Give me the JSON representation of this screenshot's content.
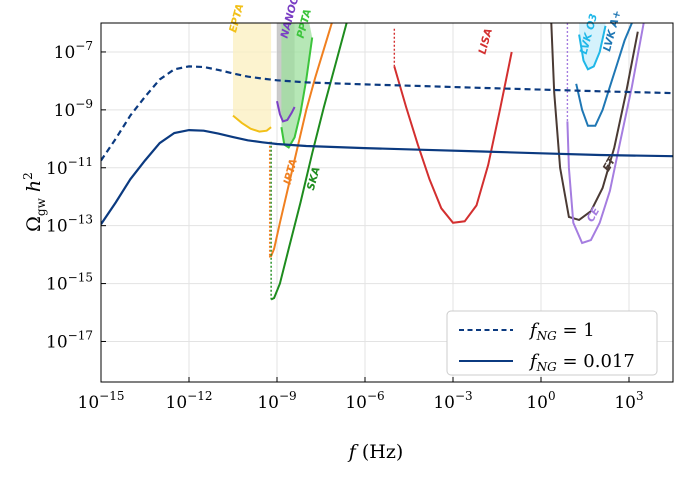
{
  "chart_data": {
    "type": "line",
    "title": "",
    "xlabel": "f (Hz)",
    "ylabel": "Ω_gw h²",
    "x_scale": "log",
    "y_scale": "log",
    "xlim_log10": [
      -15,
      4.5
    ],
    "ylim_log10": [
      -18.4,
      -6
    ],
    "grid": true,
    "x_ticks": [
      {
        "exp": -15,
        "label": "10",
        "sup": "−15"
      },
      {
        "exp": -12,
        "label": "10",
        "sup": "−12"
      },
      {
        "exp": -9,
        "label": "10",
        "sup": "−9"
      },
      {
        "exp": -6,
        "label": "10",
        "sup": "−6"
      },
      {
        "exp": -3,
        "label": "10",
        "sup": "−3"
      },
      {
        "exp": 0,
        "label": "10",
        "sup": "0"
      },
      {
        "exp": 3,
        "label": "10",
        "sup": "3"
      }
    ],
    "y_ticks": [
      {
        "exp": -7,
        "label": "10",
        "sup": "−7"
      },
      {
        "exp": -9,
        "label": "10",
        "sup": "−9"
      },
      {
        "exp": -11,
        "label": "10",
        "sup": "−11"
      },
      {
        "exp": -13,
        "label": "10",
        "sup": "−13"
      },
      {
        "exp": -15,
        "label": "10",
        "sup": "−15"
      },
      {
        "exp": -17,
        "label": "10",
        "sup": "−17"
      }
    ],
    "series": [
      {
        "name": "f_NG = 1",
        "legend_prefix": "f",
        "legend_sub": "NG",
        "legend_suffix": " = 1",
        "style": "dashed",
        "color": "#0b3a80",
        "log_x": [
          -15,
          -14.5,
          -14,
          -13.5,
          -13,
          -12.5,
          -12,
          -11.5,
          -11,
          -10.5,
          -10,
          -9.5,
          -9,
          -8,
          -6,
          -4,
          -2,
          0,
          2,
          4.5
        ],
        "log_y": [
          -10.75,
          -10.0,
          -9.2,
          -8.55,
          -7.95,
          -7.6,
          -7.5,
          -7.52,
          -7.62,
          -7.74,
          -7.85,
          -7.92,
          -7.98,
          -8.05,
          -8.12,
          -8.18,
          -8.24,
          -8.3,
          -8.36,
          -8.42
        ]
      },
      {
        "name": "f_NG = 0.017",
        "legend_prefix": "f",
        "legend_sub": "NG",
        "legend_suffix": " = 0.017",
        "style": "solid",
        "color": "#0b3a80",
        "log_x": [
          -15,
          -14.5,
          -14,
          -13.5,
          -13,
          -12.5,
          -12,
          -11.5,
          -11,
          -10.5,
          -10,
          -9.5,
          -9,
          -8,
          -6,
          -4,
          -2,
          0,
          2,
          4.5
        ],
        "log_y": [
          -12.95,
          -12.2,
          -11.4,
          -10.75,
          -10.15,
          -9.8,
          -9.7,
          -9.72,
          -9.82,
          -9.94,
          -10.05,
          -10.12,
          -10.18,
          -10.25,
          -10.32,
          -10.38,
          -10.44,
          -10.5,
          -10.56,
          -10.6
        ]
      }
    ],
    "sensitivity_curves": [
      {
        "name": "EPTA",
        "color": "#f2c018",
        "fill": "#fbefbf",
        "region_log_x": [
          -10.5,
          -9.2
        ],
        "region_top_log_y": -6,
        "log_x": [
          -10.5,
          -10.2,
          -9.9,
          -9.6,
          -9.35,
          -9.2
        ],
        "log_y": [
          -9.2,
          -9.45,
          -9.65,
          -9.75,
          -9.72,
          -9.6
        ]
      },
      {
        "name": "NANOGrav",
        "color": "#7b3fc4",
        "fill": "#b9b9b9",
        "region_log_x": [
          -9.0,
          -8.4
        ],
        "region_top_log_y": -6,
        "log_x": [
          -9.0,
          -8.9,
          -8.8,
          -8.65,
          -8.5,
          -8.4
        ],
        "log_y": [
          -8.7,
          -9.15,
          -9.4,
          -9.35,
          -9.1,
          -8.9
        ]
      },
      {
        "name": "PPTA",
        "color": "#3cc43c",
        "fill": "#9edf9e",
        "region_log_x": [
          -8.85,
          -7.9
        ],
        "region_top_log_y": -6,
        "log_x": [
          -8.85,
          -8.75,
          -8.6,
          -8.4,
          -8.2,
          -8.0,
          -7.8
        ],
        "log_y": [
          -9.6,
          -10.2,
          -10.3,
          -9.95,
          -9.1,
          -7.95,
          -6.5
        ]
      },
      {
        "name": "IPTA",
        "color": "#f08020",
        "dashed_drop_to_log_y": -14.1,
        "log_x": [
          -9.25,
          -9.2,
          -9.1,
          -8.9,
          -8.6,
          -8.3,
          -8.0,
          -7.7,
          -7.4,
          -7.1
        ],
        "log_y": [
          -14.05,
          -14.05,
          -13.8,
          -12.9,
          -11.6,
          -10.3,
          -9.0,
          -7.9,
          -6.9,
          -5.9
        ]
      },
      {
        "name": "SKA",
        "color": "#1e8c1e",
        "dashed_drop_to_log_y": -15.55,
        "log_x": [
          -9.2,
          -9.1,
          -8.9,
          -8.6,
          -8.2,
          -7.8,
          -7.4,
          -7.0,
          -6.6
        ],
        "log_y": [
          -15.55,
          -15.5,
          -15.0,
          -13.8,
          -12.2,
          -10.5,
          -8.9,
          -7.4,
          -5.9
        ]
      },
      {
        "name": "LISA",
        "color": "#d32f2f",
        "dashed_drop_to_log_y": -7.5,
        "log_x": [
          -5.0,
          -4.6,
          -4.2,
          -3.8,
          -3.4,
          -3.0,
          -2.6,
          -2.2,
          -1.8,
          -1.4,
          -1.0
        ],
        "log_y": [
          -7.5,
          -8.9,
          -10.2,
          -11.4,
          -12.4,
          -12.9,
          -12.85,
          -12.3,
          -10.9,
          -9.0,
          -7.0
        ]
      },
      {
        "name": "ET",
        "color": "#4a3a34",
        "log_x": [
          0.35,
          0.45,
          0.65,
          0.95,
          1.3,
          1.7,
          2.1,
          2.5,
          2.9,
          3.3
        ],
        "log_y": [
          -6,
          -8.4,
          -11.0,
          -12.7,
          -12.8,
          -12.5,
          -11.7,
          -10.3,
          -8.4,
          -6.3
        ]
      },
      {
        "name": "CE",
        "color": "#a57de0",
        "dashed_drop_to_log_y": -9.4,
        "log_x": [
          0.9,
          0.95,
          1.1,
          1.4,
          1.7,
          2.0,
          2.35,
          2.7,
          3.1,
          3.5
        ],
        "log_y": [
          -9.4,
          -11.0,
          -12.9,
          -13.6,
          -13.5,
          -12.9,
          -11.8,
          -10.1,
          -8.2,
          -6.0
        ]
      },
      {
        "name": "LVK O3",
        "color": "#1fb7e8",
        "fill": "#c7eefb",
        "region_log_x": [
          1.3,
          2.2
        ],
        "region_top_log_y": -6,
        "log_x": [
          1.3,
          1.45,
          1.6,
          1.8,
          2.0,
          2.2
        ],
        "log_y": [
          -6.4,
          -7.3,
          -7.6,
          -7.5,
          -7.0,
          -6.1
        ]
      },
      {
        "name": "LVK A+",
        "color": "#1f77b4",
        "log_x": [
          1.2,
          1.4,
          1.6,
          1.85,
          2.1,
          2.35,
          2.6,
          2.85,
          3.1
        ],
        "log_y": [
          -8.1,
          -9.0,
          -9.55,
          -9.55,
          -9.0,
          -8.2,
          -7.4,
          -6.6,
          -6.0
        ]
      }
    ],
    "labels": [
      {
        "text": "EPTA",
        "color": "#f2c018",
        "x": -10.4,
        "y": -6.35,
        "rot": -75
      },
      {
        "text": "NANOGrav",
        "color": "#7b3fc4",
        "x": -8.65,
        "y": -6.55,
        "rot": -75
      },
      {
        "text": "PPTA",
        "color": "#3cc43c",
        "x": -8.1,
        "y": -6.55,
        "rot": -75
      },
      {
        "text": "IPTA",
        "color": "#f08020",
        "x": -8.55,
        "y": -11.6,
        "rot": -75
      },
      {
        "text": "SKA",
        "color": "#1e8c1e",
        "x": -7.75,
        "y": -11.8,
        "rot": -75
      },
      {
        "text": "LISA",
        "color": "#d32f2f",
        "x": -1.9,
        "y": -7.1,
        "rot": -75
      },
      {
        "text": "ET",
        "color": "#4a3a34",
        "x": 2.3,
        "y": -11.15,
        "rot": -60
      },
      {
        "text": "CE",
        "color": "#a57de0",
        "x": 1.75,
        "y": -12.9,
        "rot": -60
      },
      {
        "text": "LVK O3",
        "color": "#1fb7e8",
        "x": 1.55,
        "y": -7.1,
        "rot": -75
      },
      {
        "text": "LVK A+",
        "color": "#1f77b4",
        "x": 2.35,
        "y": -7.0,
        "rot": -75
      }
    ],
    "legend_position": "bottom-right"
  }
}
